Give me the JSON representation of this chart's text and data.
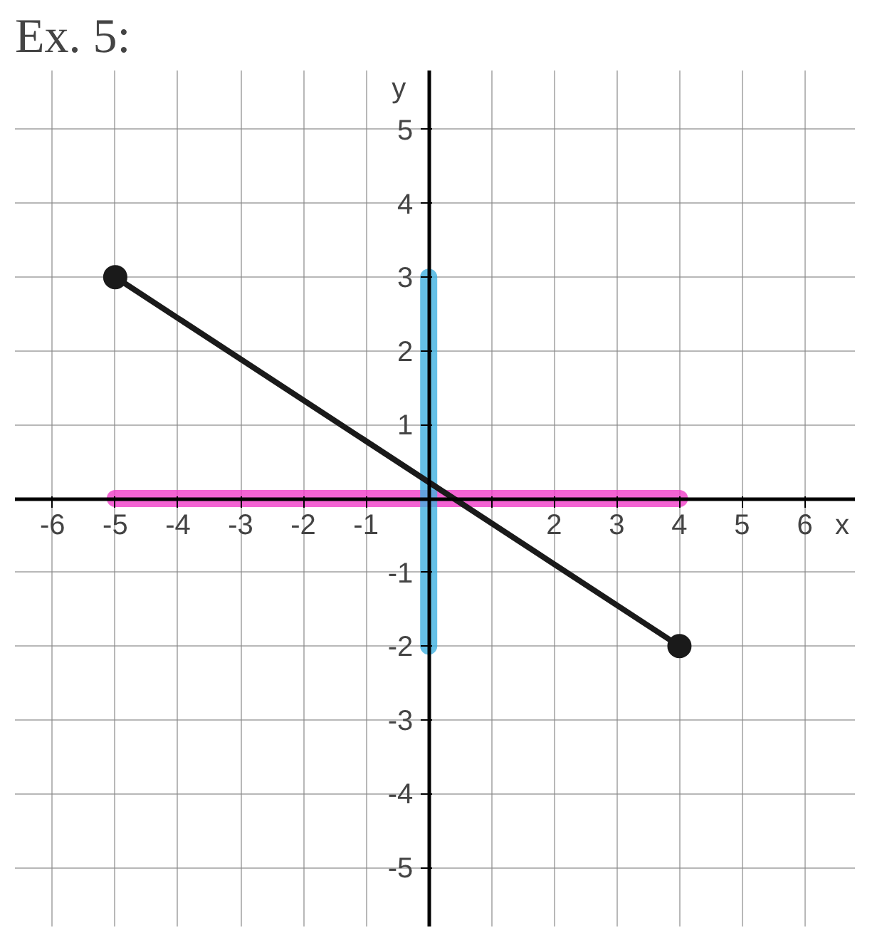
{
  "chart_data": {
    "type": "line",
    "title": "Ex. 5:",
    "xlabel": "x",
    "ylabel": "y",
    "x": [
      -5,
      4
    ],
    "series": [
      {
        "color": "#f03cc8",
        "x": [
          -5,
          4
        ],
        "values": [
          0,
          0
        ],
        "marker": "none"
      },
      {
        "color": "#3fb0e0",
        "x": [
          0,
          0
        ],
        "values": [
          -2,
          3
        ],
        "marker": "none"
      },
      {
        "color": "#1a1a1a",
        "values": [
          3,
          -2
        ]
      }
    ],
    "marker": "circle",
    "line_style": "solid",
    "grid": true,
    "xlim": [
      -6.6,
      6.8
    ],
    "ylim": [
      -5.8,
      5.8
    ],
    "xticks": [
      -6,
      -5,
      -4,
      -3,
      -2,
      -1,
      {
        "value": 0,
        "label": null
      },
      {
        "value": 1,
        "label": null
      },
      2,
      3,
      4,
      5,
      6
    ],
    "yticks": [
      -5,
      -4,
      -3,
      -2,
      -1,
      {
        "value": 0,
        "label": null
      },
      1,
      2,
      3,
      4,
      5
    ]
  }
}
